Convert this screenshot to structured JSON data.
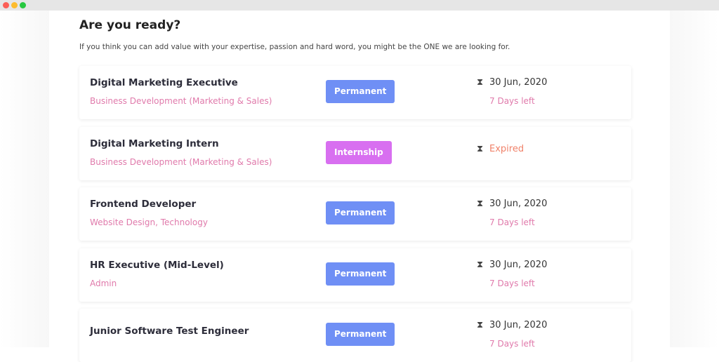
{
  "window": {
    "controls": [
      "close",
      "minimize",
      "maximize"
    ]
  },
  "heading": "Are you ready?",
  "intro": "If you think you can add value with your expertise, passion and hard word, you might be the ONE we are looking for.",
  "colors": {
    "permanent": "#6f8ff5",
    "internship": "#d86ff0",
    "expired": "#f0826a",
    "dept": "#e07aab"
  },
  "jobs": [
    {
      "title": "Digital Marketing Executive",
      "dept": "Business Development (Marketing & Sales)",
      "type": "Permanent",
      "date": "30 Jun, 2020",
      "left": "7 Days left"
    },
    {
      "title": "Digital Marketing Intern",
      "dept": "Business Development (Marketing & Sales)",
      "type": "Internship",
      "status": "Expired"
    },
    {
      "title": "Frontend Developer",
      "dept": "Website Design, Technology",
      "type": "Permanent",
      "date": "30 Jun, 2020",
      "left": "7 Days left"
    },
    {
      "title": "HR Executive (Mid-Level)",
      "dept": "Admin",
      "type": "Permanent",
      "date": "30 Jun, 2020",
      "left": "7 Days left"
    },
    {
      "title": "Junior Software Test Engineer",
      "dept": "",
      "type": "Permanent",
      "date": "30 Jun, 2020",
      "left": "7 Days left"
    }
  ]
}
